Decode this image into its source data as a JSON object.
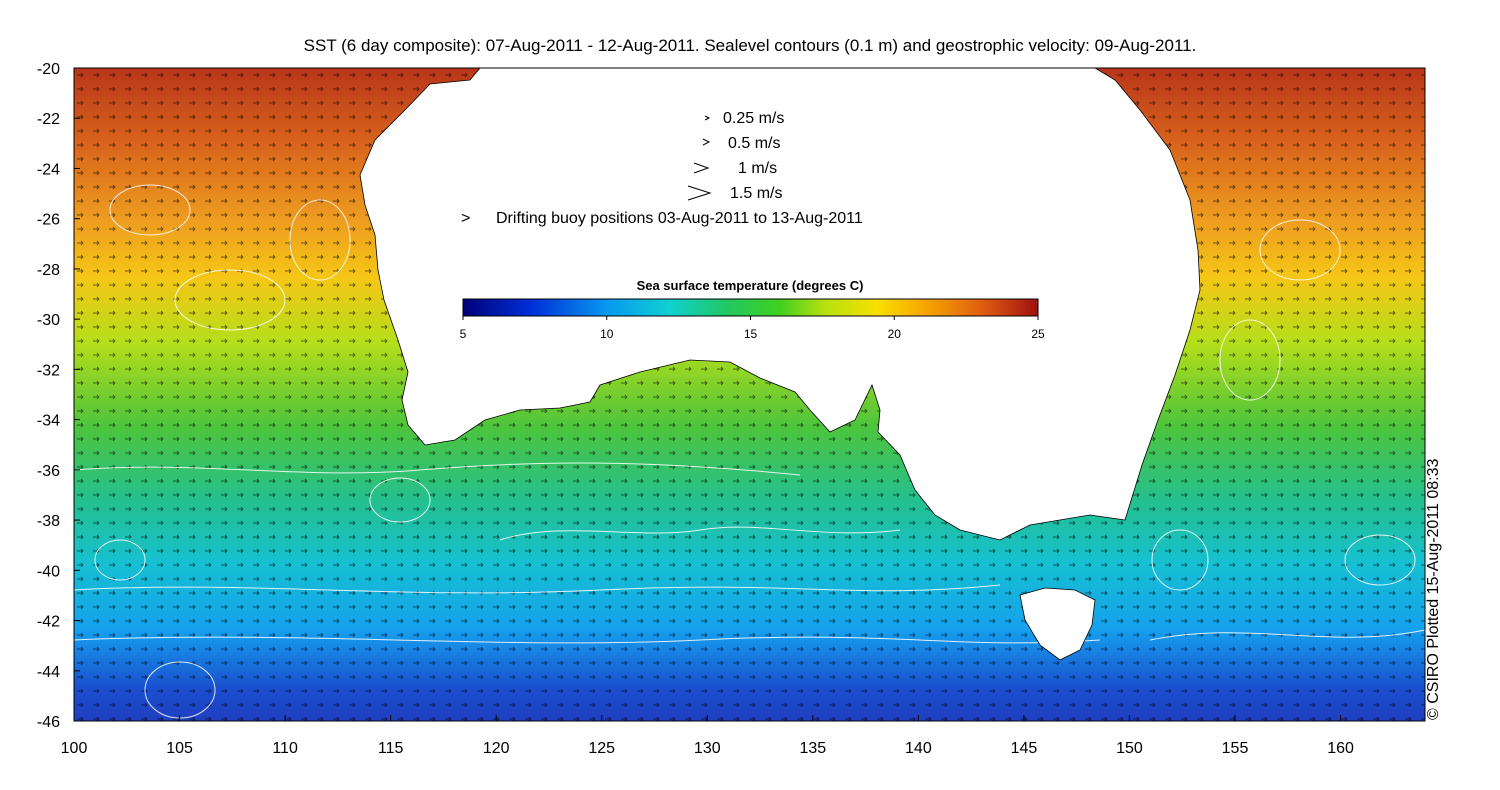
{
  "title": "SST (6 day composite): 07-Aug-2011 - 12-Aug-2011. Sealevel contours (0.1 m) and geostrophic velocity: 09-Aug-2011.",
  "axes": {
    "x_ticks": [
      "100",
      "105",
      "110",
      "115",
      "120",
      "125",
      "130",
      "135",
      "140",
      "145",
      "150",
      "155",
      "160"
    ],
    "y_ticks": [
      "-20",
      "-22",
      "-24",
      "-26",
      "-28",
      "-30",
      "-32",
      "-34",
      "-36",
      "-38",
      "-40",
      "-42",
      "-44",
      "-46"
    ]
  },
  "velocity_legend": [
    {
      "label": "0.25 m/s",
      "speed": 0.25
    },
    {
      "label": "0.5 m/s",
      "speed": 0.5
    },
    {
      "label": "1 m/s",
      "speed": 1
    },
    {
      "label": "1.5 m/s",
      "speed": 1.5
    }
  ],
  "buoy_legend": {
    "symbol": ">",
    "label": "Drifting buoy positions 03-Aug-2011 to 13-Aug-2011",
    "color": "#cc33cc"
  },
  "colorbar": {
    "title": "Sea surface temperature (degrees C)",
    "ticks": [
      "5",
      "10",
      "15",
      "20",
      "25"
    ],
    "min": 5,
    "max": 25
  },
  "copyright": "© CSIRO Plotted 15-Aug-2011 08:33",
  "colors": {
    "land": "#ffffff",
    "contour": "#ffffff",
    "arrow": "#000000",
    "buoy": "#cc33cc"
  }
}
